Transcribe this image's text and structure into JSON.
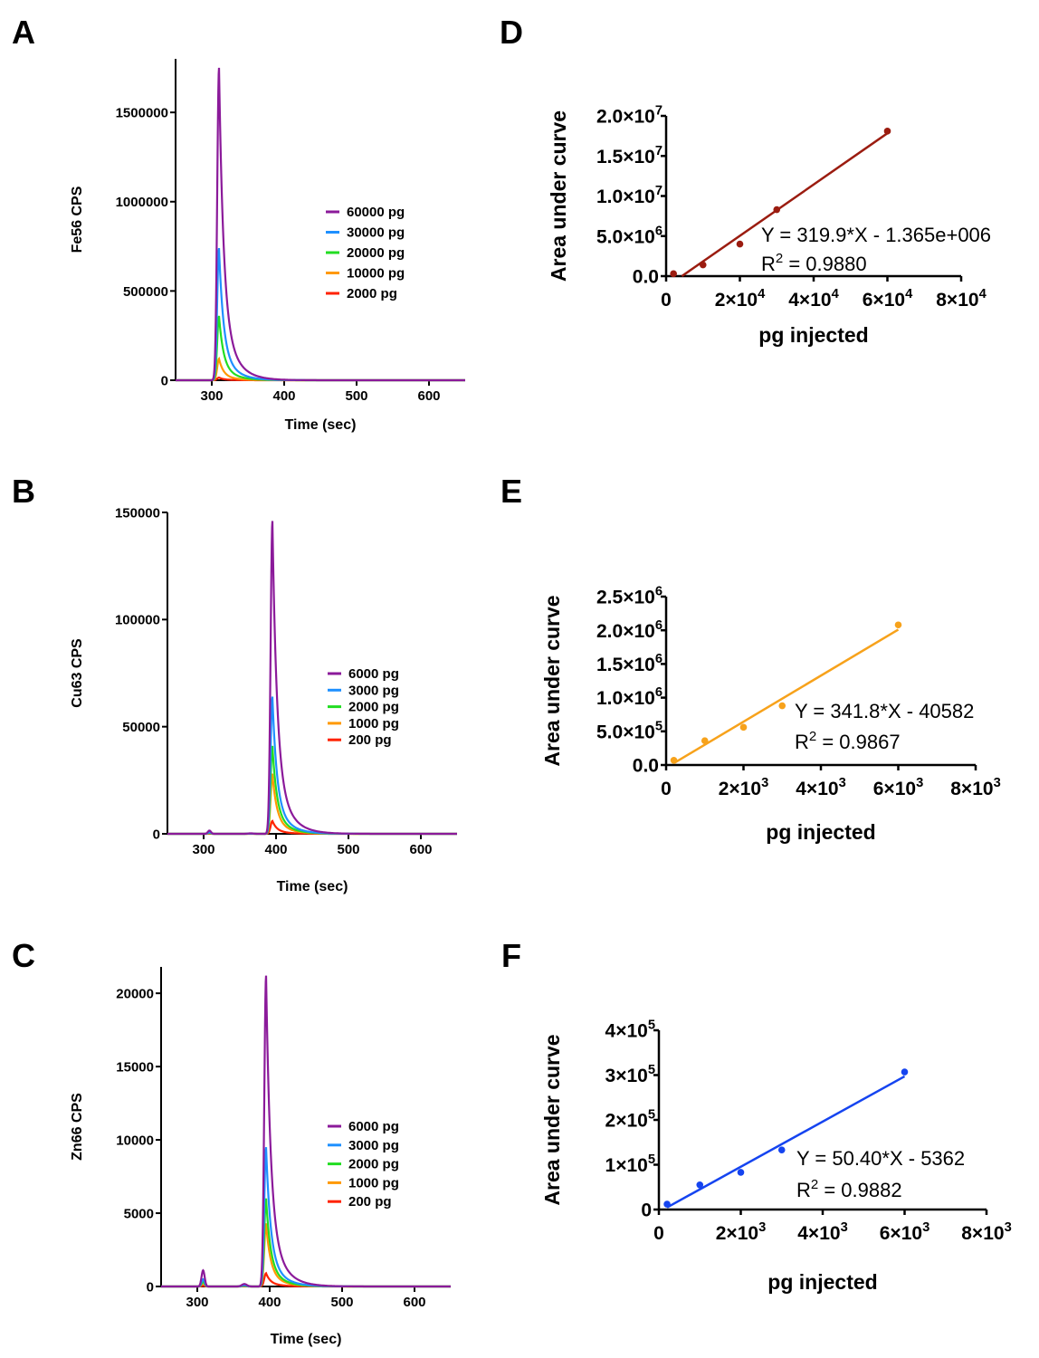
{
  "panel_labels": [
    "A",
    "B",
    "C",
    "D",
    "E",
    "F"
  ],
  "chart_data": [
    {
      "id": "A",
      "type": "line",
      "xlabel": "Time (sec)",
      "ylabel": "Fe56 CPS",
      "xlim": [
        250,
        650
      ],
      "ylim": [
        0,
        1800000
      ],
      "xticks": [
        300,
        400,
        500,
        600
      ],
      "yticks": [
        0,
        500000,
        1000000,
        1500000
      ],
      "ytick_labels": [
        "0",
        "500000",
        "1000000",
        "1500000"
      ],
      "legend_placement": "right",
      "peak_time": 310,
      "pre_bump": 0,
      "series": [
        {
          "name": "60000 pg",
          "color": "#8B1A9A",
          "peak": 1750000
        },
        {
          "name": "30000 pg",
          "color": "#1E90FF",
          "peak": 740000
        },
        {
          "name": "20000 pg",
          "color": "#22DD22",
          "peak": 360000
        },
        {
          "name": "10000 pg",
          "color": "#FF9900",
          "peak": 120000
        },
        {
          "name": "2000 pg",
          "color": "#FF2200",
          "peak": 15000
        }
      ]
    },
    {
      "id": "B",
      "type": "line",
      "xlabel": "Time (sec)",
      "ylabel": "Cu63 CPS",
      "xlim": [
        250,
        650
      ],
      "ylim": [
        0,
        150000
      ],
      "xticks": [
        300,
        400,
        500,
        600
      ],
      "yticks": [
        0,
        50000,
        100000,
        150000
      ],
      "ytick_labels": [
        "0",
        "50000",
        "100000",
        "150000"
      ],
      "legend_placement": "right",
      "peak_time": 395,
      "pre_bump": 1500,
      "series": [
        {
          "name": "6000 pg",
          "color": "#8B1A9A",
          "peak": 146000
        },
        {
          "name": "3000 pg",
          "color": "#1E90FF",
          "peak": 64000
        },
        {
          "name": "2000 pg",
          "color": "#22DD22",
          "peak": 41000
        },
        {
          "name": "1000 pg",
          "color": "#FF9900",
          "peak": 28000
        },
        {
          "name": "200 pg",
          "color": "#FF2200",
          "peak": 6000
        }
      ]
    },
    {
      "id": "C",
      "type": "line",
      "xlabel": "Time (sec)",
      "ylabel": "Zn66 CPS",
      "xlim": [
        250,
        650
      ],
      "ylim": [
        0,
        21800
      ],
      "xticks": [
        300,
        400,
        500,
        600
      ],
      "yticks": [
        0,
        5000,
        10000,
        15000,
        20000
      ],
      "ytick_labels": [
        "0",
        "5000",
        "10000",
        "15000",
        "20000"
      ],
      "legend_placement": "right",
      "peak_time": 395,
      "pre_bump": 1100,
      "series": [
        {
          "name": "6000 pg",
          "color": "#8B1A9A",
          "peak": 21200
        },
        {
          "name": "3000 pg",
          "color": "#1E90FF",
          "peak": 9500
        },
        {
          "name": "2000 pg",
          "color": "#22DD22",
          "peak": 6000
        },
        {
          "name": "1000 pg",
          "color": "#FF9900",
          "peak": 4300
        },
        {
          "name": "200 pg",
          "color": "#FF2200",
          "peak": 900
        }
      ]
    },
    {
      "id": "D",
      "type": "scatter",
      "xlabel": "pg injected",
      "ylabel": "Area under curve",
      "xlim": [
        0,
        80000
      ],
      "ylim": [
        0,
        20000000
      ],
      "xticks": [
        0,
        20000,
        40000,
        60000,
        80000
      ],
      "xtick_labels": [
        {
          "base": "0",
          "exp": ""
        },
        {
          "base": "2×10",
          "exp": "4"
        },
        {
          "base": "4×10",
          "exp": "4"
        },
        {
          "base": "6×10",
          "exp": "4"
        },
        {
          "base": "8×10",
          "exp": "4"
        }
      ],
      "yticks": [
        0,
        5000000,
        10000000,
        15000000,
        20000000
      ],
      "ytick_labels": [
        {
          "base": "0.0",
          "exp": ""
        },
        {
          "base": "5.0×10",
          "exp": "6"
        },
        {
          "base": "1.0×10",
          "exp": "7"
        },
        {
          "base": "1.5×10",
          "exp": "7"
        },
        {
          "base": "2.0×10",
          "exp": "7"
        }
      ],
      "color": "#9B1C10",
      "x": [
        2000,
        10000,
        20000,
        30000,
        60000
      ],
      "y": [
        300000,
        1400000,
        4000000,
        8300000,
        18100000
      ],
      "fit": {
        "slope": 319.9,
        "intercept": -1365000,
        "x_range": [
          4267,
          60000
        ]
      },
      "equation": "Y = 319.9*X - 1.365e+006",
      "r2_prefix": "R",
      "r2_exp": "2",
      "r2_value": " = 0.9880"
    },
    {
      "id": "E",
      "type": "scatter",
      "xlabel": "pg injected",
      "ylabel": "Area under curve",
      "xlim": [
        0,
        8000
      ],
      "ylim": [
        0,
        2500000
      ],
      "xticks": [
        0,
        2000,
        4000,
        6000,
        8000
      ],
      "xtick_labels": [
        {
          "base": "0",
          "exp": ""
        },
        {
          "base": "2×10",
          "exp": "3"
        },
        {
          "base": "4×10",
          "exp": "3"
        },
        {
          "base": "6×10",
          "exp": "3"
        },
        {
          "base": "8×10",
          "exp": "3"
        }
      ],
      "yticks": [
        0,
        500000,
        1000000,
        1500000,
        2000000,
        2500000
      ],
      "ytick_labels": [
        {
          "base": "0.0",
          "exp": ""
        },
        {
          "base": "5.0×10",
          "exp": "5"
        },
        {
          "base": "1.0×10",
          "exp": "6"
        },
        {
          "base": "1.5×10",
          "exp": "6"
        },
        {
          "base": "2.0×10",
          "exp": "6"
        },
        {
          "base": "2.5×10",
          "exp": "6"
        }
      ],
      "color": "#F7A21B",
      "x": [
        200,
        1000,
        2000,
        3000,
        6000
      ],
      "y": [
        70000,
        360000,
        560000,
        880000,
        2080000
      ],
      "fit": {
        "slope": 341.8,
        "intercept": -40582,
        "x_range": [
          200,
          6000
        ]
      },
      "equation": "Y = 341.8*X - 40582",
      "r2_prefix": "R",
      "r2_exp": "2",
      "r2_value": " = 0.9867"
    },
    {
      "id": "F",
      "type": "scatter",
      "xlabel": "pg injected",
      "ylabel": "Area under curve",
      "xlim": [
        0,
        8000
      ],
      "ylim": [
        0,
        400000
      ],
      "xticks": [
        0,
        2000,
        4000,
        6000,
        8000
      ],
      "xtick_labels": [
        {
          "base": "0",
          "exp": ""
        },
        {
          "base": "2×10",
          "exp": "3"
        },
        {
          "base": "4×10",
          "exp": "3"
        },
        {
          "base": "6×10",
          "exp": "3"
        },
        {
          "base": "8×10",
          "exp": "3"
        }
      ],
      "yticks": [
        0,
        100000,
        200000,
        300000,
        400000
      ],
      "ytick_labels": [
        {
          "base": "0",
          "exp": ""
        },
        {
          "base": "1×10",
          "exp": "5"
        },
        {
          "base": "2×10",
          "exp": "5"
        },
        {
          "base": "3×10",
          "exp": "5"
        },
        {
          "base": "4×10",
          "exp": "5"
        }
      ],
      "color": "#1544F0",
      "x": [
        200,
        1000,
        2000,
        3000,
        6000
      ],
      "y": [
        12000,
        55000,
        83000,
        133000,
        307000
      ],
      "fit": {
        "slope": 50.4,
        "intercept": -5362,
        "x_range": [
          200,
          6000
        ]
      },
      "equation": "Y = 50.40*X - 5362",
      "r2_prefix": "R",
      "r2_exp": "2",
      "r2_value": " = 0.9882"
    }
  ]
}
